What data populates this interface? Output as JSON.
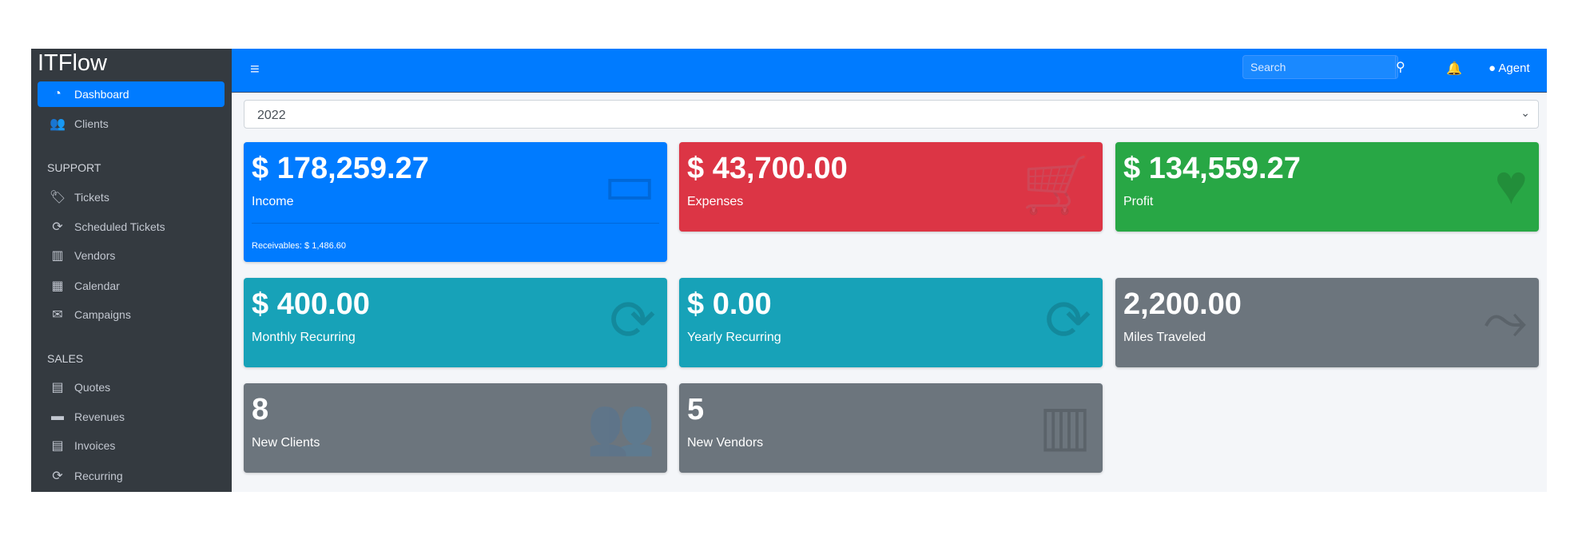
{
  "brand": "ITFlow",
  "sidebar": {
    "items": [
      {
        "label": "Dashboard",
        "icon": "dashboard-icon"
      },
      {
        "label": "Clients",
        "icon": "users-icon"
      }
    ],
    "support_header": "SUPPORT",
    "support": [
      {
        "label": "Tickets",
        "icon": "tags-icon"
      },
      {
        "label": "Scheduled Tickets",
        "icon": "sync-icon"
      },
      {
        "label": "Vendors",
        "icon": "building-icon"
      },
      {
        "label": "Calendar",
        "icon": "calendar-icon"
      },
      {
        "label": "Campaigns",
        "icon": "envelope-icon"
      }
    ],
    "sales_header": "SALES",
    "sales": [
      {
        "label": "Quotes",
        "icon": "file-icon"
      },
      {
        "label": "Revenues",
        "icon": "credit-card-icon"
      },
      {
        "label": "Invoices",
        "icon": "invoice-icon"
      },
      {
        "label": "Recurring",
        "icon": "sync-icon"
      }
    ]
  },
  "navbar": {
    "search_placeholder": "Search",
    "user": "Agent"
  },
  "year_select": "2022",
  "cards": [
    {
      "value": "$ 178,259.27",
      "label": "Income",
      "footer": "Receivables: $ 1,486.60",
      "color": "#007bff"
    },
    {
      "value": "$ 43,700.00",
      "label": "Expenses",
      "color": "#dc3545"
    },
    {
      "value": "$ 134,559.27",
      "label": "Profit",
      "color": "#28a745"
    },
    {
      "value": "$ 400.00",
      "label": "Monthly Recurring",
      "color": "#17a2b8"
    },
    {
      "value": "$ 0.00",
      "label": "Yearly Recurring",
      "color": "#17a2b8"
    },
    {
      "value": "2,200.00",
      "label": "Miles Traveled",
      "color": "#6c757d"
    },
    {
      "value": "8",
      "label": "New Clients",
      "color": "#6c757d"
    },
    {
      "value": "5",
      "label": "New Vendors",
      "color": "#6c757d"
    }
  ]
}
